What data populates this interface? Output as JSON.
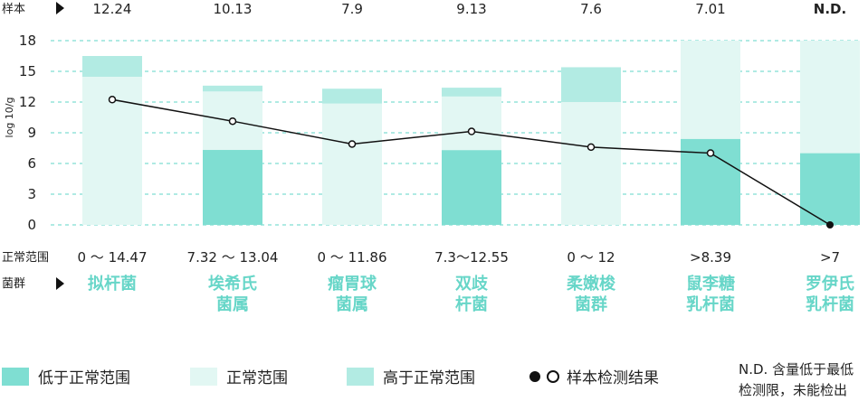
{
  "chart_data": {
    "type": "bar",
    "ylabel": "log 10/g",
    "ylim": [
      0,
      18
    ],
    "yticks": [
      0,
      3,
      6,
      9,
      12,
      15,
      18
    ],
    "grid": true,
    "sample_row_label": "样本",
    "range_row_label": "正常范围",
    "category_row_label": "菌群",
    "categories": [
      {
        "name_lines": [
          "拟杆菌"
        ],
        "sample_text": "12.24",
        "sample_value": 12.24,
        "range_text": "0 ～ 14.47",
        "low_threshold": 0,
        "high_threshold": 14.47,
        "axis_top": 16.5
      },
      {
        "name_lines": [
          "埃希氏",
          "菌属"
        ],
        "sample_text": "10.13",
        "sample_value": 10.13,
        "range_text": "7.32 ～ 13.04",
        "low_threshold": 7.32,
        "high_threshold": 13.04,
        "axis_top": 13.6
      },
      {
        "name_lines": [
          "瘤胃球",
          "菌属"
        ],
        "sample_text": "7.9",
        "sample_value": 7.9,
        "range_text": "0 ～ 11.86",
        "low_threshold": 0,
        "high_threshold": 11.86,
        "axis_top": 13.3
      },
      {
        "name_lines": [
          "双歧",
          "杆菌"
        ],
        "sample_text": "9.13",
        "sample_value": 9.13,
        "range_text": "7.3～12.55",
        "low_threshold": 7.3,
        "high_threshold": 12.55,
        "axis_top": 13.4
      },
      {
        "name_lines": [
          "柔嫩梭",
          "菌群"
        ],
        "sample_text": "7.6",
        "sample_value": 7.6,
        "range_text": "0 ～ 12",
        "low_threshold": 0,
        "high_threshold": 12,
        "axis_top": 15.4
      },
      {
        "name_lines": [
          "鼠李糖",
          "乳杆菌"
        ],
        "sample_text": "7.01",
        "sample_value": 7.01,
        "range_text": ">8.39",
        "low_threshold": 8.39,
        "high_threshold": 18,
        "axis_top": 18
      },
      {
        "name_lines": [
          "罗伊氏",
          "乳杆菌"
        ],
        "sample_text": "N.D.",
        "sample_value": 0,
        "range_text": ">7",
        "low_threshold": 7,
        "high_threshold": 18,
        "axis_top": 18
      }
    ],
    "colors": {
      "low": "#7fded2",
      "normal": "#e2f7f3",
      "high": "#b2ebe3",
      "grid": "#7fded2",
      "category_text": "#67d6c8",
      "line": "#111111"
    }
  },
  "legend": {
    "low_label": "低于正常范围",
    "normal_label": "正常范围",
    "high_label": "高于正常范围",
    "sample_label": "样本检测结果",
    "nd_note_line1": "N.D. 含量低于最低",
    "nd_note_line2": "检测限，未能检出"
  }
}
